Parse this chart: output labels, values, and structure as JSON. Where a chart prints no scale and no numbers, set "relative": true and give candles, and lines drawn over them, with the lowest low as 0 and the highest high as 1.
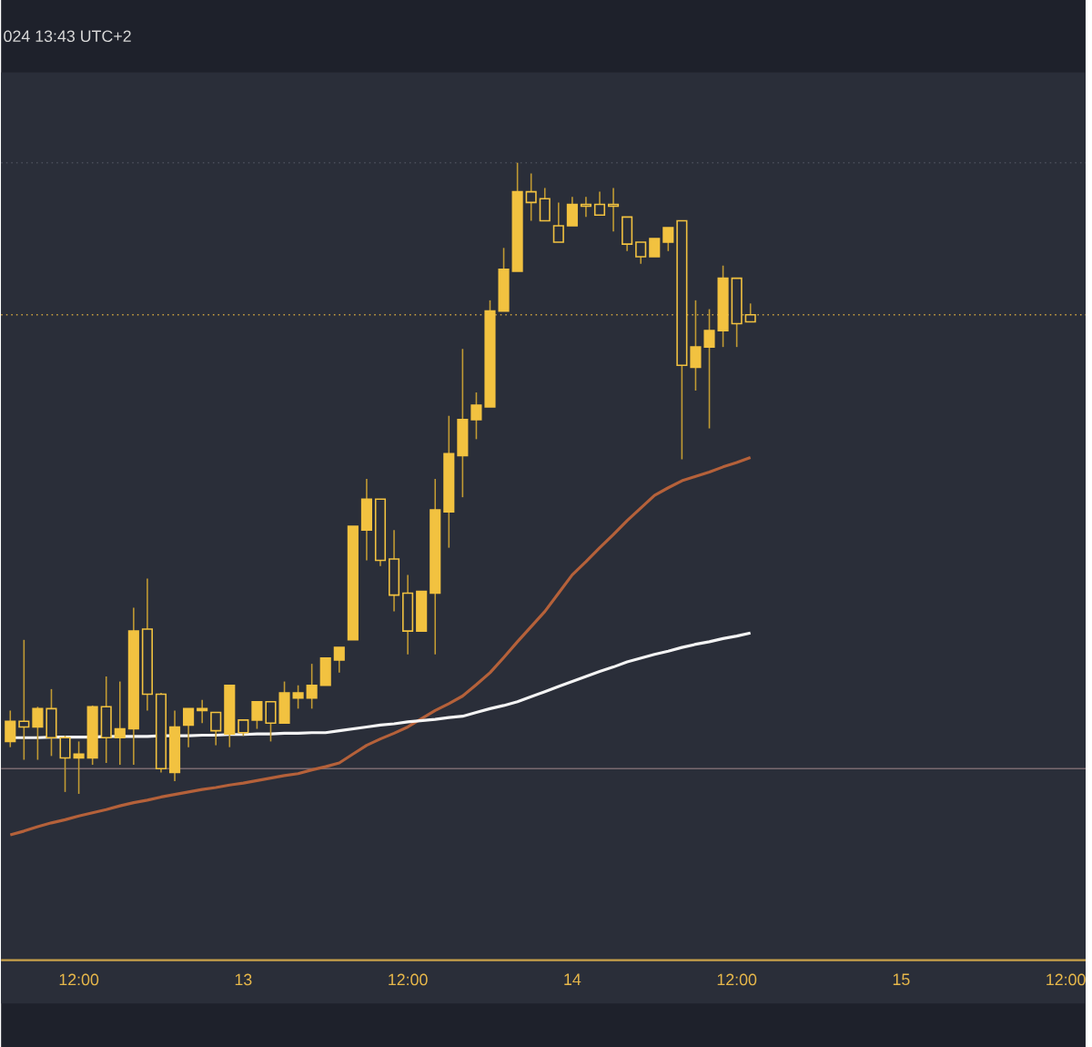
{
  "chart_data": {
    "type": "candlestick",
    "relative": true,
    "color": "#f2c240",
    "tick_labels": "x",
    "categories": [
      null,
      null,
      null,
      null,
      null,
      "12:00",
      null,
      null,
      null,
      null,
      null,
      null,
      null,
      null,
      null,
      null,
      null,
      "13",
      null,
      null,
      null,
      null,
      null,
      null,
      null,
      null,
      null,
      null,
      null,
      "12:00",
      null,
      null,
      null,
      null,
      null,
      null,
      null,
      null,
      null,
      null,
      null,
      "14",
      null,
      null,
      null,
      null,
      null,
      null,
      null,
      null,
      null,
      null,
      null,
      "12:00",
      null,
      null,
      null,
      null,
      null,
      null,
      null,
      null,
      null,
      null,
      null,
      "15",
      null,
      null,
      null,
      null,
      null,
      null,
      null,
      null,
      null,
      null,
      null,
      "12:00",
      null
    ],
    "ohlc": [
      [
        0.083,
        0.132,
        0.074,
        0.115
      ],
      [
        0.115,
        0.244,
        0.054,
        0.106
      ],
      [
        0.106,
        0.138,
        0.054,
        0.135
      ],
      [
        0.135,
        0.166,
        0.06,
        0.089
      ],
      [
        0.089,
        0.092,
        0.003,
        0.057
      ],
      [
        0.057,
        0.083,
        0,
        0.063
      ],
      [
        0.057,
        0.14,
        0.046,
        0.138
      ],
      [
        0.138,
        0.186,
        0.049,
        0.089
      ],
      [
        0.089,
        0.178,
        0.046,
        0.103
      ],
      [
        0.103,
        0.295,
        0.046,
        0.258
      ],
      [
        0.261,
        0.341,
        0.132,
        0.158
      ],
      [
        0.158,
        0.16,
        0.034,
        0.04
      ],
      [
        0.034,
        0.132,
        0.02,
        0.106
      ],
      [
        0.109,
        0.135,
        0.074,
        0.135
      ],
      [
        0.132,
        0.149,
        0.112,
        0.135
      ],
      [
        0.129,
        0.129,
        0.077,
        0.1
      ],
      [
        0.095,
        0.172,
        0.074,
        0.172
      ],
      [
        0.117,
        0.117,
        0.092,
        0.097
      ],
      [
        0.117,
        0.146,
        0.103,
        0.146
      ],
      [
        0.146,
        0.146,
        0.083,
        0.112
      ],
      [
        0.112,
        0.178,
        0.112,
        0.16
      ],
      [
        0.152,
        0.172,
        0.135,
        0.16
      ],
      [
        0.152,
        0.206,
        0.135,
        0.172
      ],
      [
        0.172,
        0.215,
        0.172,
        0.215
      ],
      [
        0.212,
        0.232,
        0.192,
        0.232
      ],
      [
        0.244,
        0.424,
        0.244,
        0.424
      ],
      [
        0.418,
        0.499,
        0.37,
        0.467
      ],
      [
        0.467,
        0.467,
        0.361,
        0.37
      ],
      [
        0.372,
        0.418,
        0.289,
        0.315
      ],
      [
        0.318,
        0.347,
        0.221,
        0.258
      ],
      [
        0.258,
        0.321,
        0.258,
        0.321
      ],
      [
        0.318,
        0.499,
        0.221,
        0.45
      ],
      [
        0.447,
        0.599,
        0.39,
        0.539
      ],
      [
        0.536,
        0.705,
        0.47,
        0.593
      ],
      [
        0.593,
        0.636,
        0.562,
        0.616
      ],
      [
        0.613,
        0.782,
        0.613,
        0.765
      ],
      [
        0.765,
        0.865,
        0.765,
        0.831
      ],
      [
        0.828,
        1.0,
        0.828,
        0.954
      ],
      [
        0.954,
        0.983,
        0.908,
        0.937
      ],
      [
        0.943,
        0.96,
        0.908,
        0.908
      ],
      [
        0.9,
        0.937,
        0.874,
        0.874
      ],
      [
        0.9,
        0.946,
        0.9,
        0.934
      ],
      [
        0.934,
        0.946,
        0.914,
        0.931
      ],
      [
        0.934,
        0.954,
        0.917,
        0.917
      ],
      [
        0.934,
        0.96,
        0.891,
        0.931
      ],
      [
        0.914,
        0.914,
        0.86,
        0.871
      ],
      [
        0.874,
        0.874,
        0.84,
        0.851
      ],
      [
        0.851,
        0.88,
        0.851,
        0.88
      ],
      [
        0.874,
        0.897,
        0.86,
        0.897
      ],
      [
        0.908,
        0.908,
        0.53,
        0.679
      ],
      [
        0.676,
        0.782,
        0.639,
        0.708
      ],
      [
        0.708,
        0.768,
        0.579,
        0.734
      ],
      [
        0.734,
        0.837,
        0.708,
        0.817
      ],
      [
        0.817,
        0.817,
        0.708,
        0.745
      ],
      [
        0.759,
        0.777,
        0.748,
        0.748
      ],
      null,
      null,
      null,
      null,
      null,
      null,
      null,
      null,
      null,
      null,
      null,
      null,
      null,
      null,
      null,
      null,
      null,
      null,
      null,
      null,
      null,
      null,
      null,
      null
    ],
    "series": [
      {
        "type": "line",
        "color": "#b5613a",
        "values": [
          -0.065,
          -0.059,
          -0.052,
          -0.046,
          -0.041,
          -0.035,
          -0.03,
          -0.025,
          -0.019,
          -0.014,
          -0.01,
          -0.005,
          -0.001,
          0.003,
          0.007,
          0.01,
          0.014,
          0.017,
          0.021,
          0.025,
          0.029,
          0.032,
          0.038,
          0.043,
          0.049,
          0.063,
          0.077,
          0.087,
          0.096,
          0.106,
          0.119,
          0.132,
          0.143,
          0.155,
          0.173,
          0.192,
          0.216,
          0.241,
          0.265,
          0.289,
          0.318,
          0.347,
          0.368,
          0.39,
          0.411,
          0.433,
          0.453,
          0.473,
          0.485,
          0.496,
          0.503,
          0.51,
          0.518,
          0.525,
          0.533,
          null,
          null,
          null,
          null,
          null,
          null,
          null,
          null,
          null,
          null,
          null,
          null,
          null,
          null,
          null,
          null,
          null,
          null,
          null,
          null,
          null,
          null,
          null,
          null
        ]
      },
      {
        "type": "line",
        "color": "#f4f4f4",
        "values": [
          0.089,
          0.089,
          0.089,
          0.09,
          0.09,
          0.09,
          0.09,
          0.091,
          0.091,
          0.091,
          0.091,
          0.092,
          0.092,
          0.092,
          0.093,
          0.093,
          0.094,
          0.094,
          0.095,
          0.095,
          0.096,
          0.096,
          0.097,
          0.097,
          0.1,
          0.103,
          0.106,
          0.109,
          0.111,
          0.114,
          0.116,
          0.118,
          0.121,
          0.123,
          0.129,
          0.135,
          0.14,
          0.146,
          0.154,
          0.162,
          0.17,
          0.178,
          0.186,
          0.194,
          0.201,
          0.209,
          0.215,
          0.221,
          0.226,
          0.232,
          0.237,
          0.241,
          0.246,
          0.25,
          0.255,
          null,
          null,
          null,
          null,
          null,
          null,
          null,
          null,
          null,
          null,
          null,
          null,
          null,
          null,
          null,
          null,
          null,
          null,
          null,
          null,
          null,
          null,
          null,
          null
        ]
      }
    ],
    "ref_lines": [
      {
        "axis": "y",
        "value": 1.0,
        "color": "#4a4e5a",
        "line_style": "dotted"
      },
      {
        "axis": "y",
        "value": 0.759,
        "color": "#c9a040",
        "line_style": "dotted"
      },
      {
        "axis": "y",
        "value": 0.04,
        "color": "#7a6a70",
        "line_style": "solid"
      }
    ],
    "annotations": [
      "024 13:43 UTC+2"
    ]
  }
}
